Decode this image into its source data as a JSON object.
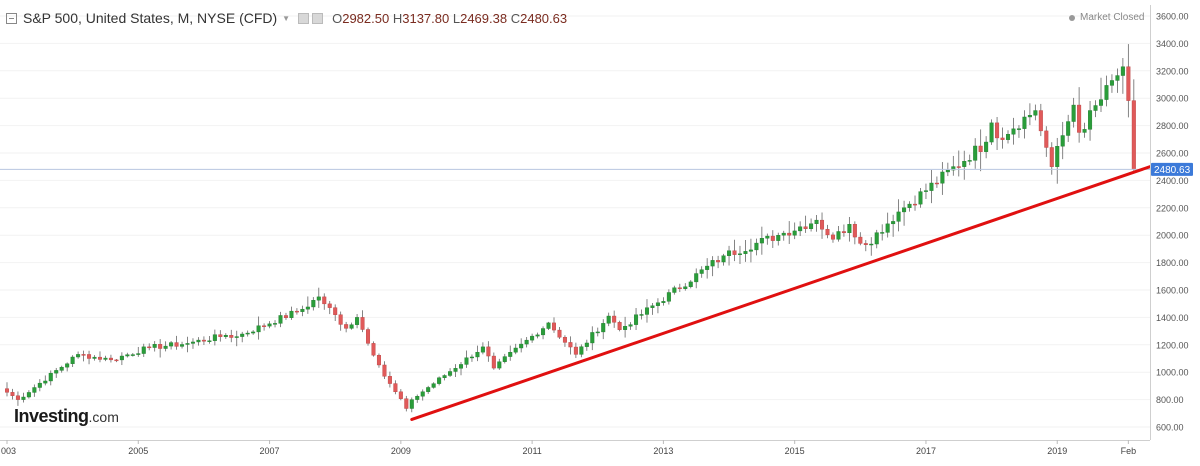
{
  "header": {
    "symbol": "S&P 500, United States, M, NYSE (CFD)",
    "open_label": "O",
    "open": "2982.50",
    "high_label": "H",
    "high": "3137.80",
    "low_label": "L",
    "low": "2469.38",
    "close_label": "C",
    "close": "2480.63"
  },
  "status": "Market Closed",
  "logo": {
    "brand": "Investing",
    "suffix": ".com"
  },
  "chart_data": {
    "type": "candlestick",
    "x_tick_labels": [
      "003",
      "2005",
      "2007",
      "2009",
      "2011",
      "2013",
      "2015",
      "2017",
      "2019",
      "Feb"
    ],
    "y_tick_labels": [
      "600.00",
      "800.00",
      "1000.00",
      "1200.00",
      "1400.00",
      "1600.00",
      "1800.00",
      "2000.00",
      "2200.00",
      "2400.00",
      "2600.00",
      "2800.00",
      "3000.00",
      "3200.00",
      "3400.00",
      "3600.00"
    ],
    "ylim": [
      540,
      3650
    ],
    "last_price": 2480.63,
    "last_price_label": "2480.63",
    "colors": {
      "up": "#2a9d3a",
      "down": "#e05a5a",
      "trendline": "#e01010",
      "price_tag": "#3c7ad9"
    },
    "waypoints": [
      [
        "2002-12",
        880
      ],
      [
        "2003-03",
        800
      ],
      [
        "2004-02",
        1130
      ],
      [
        "2004-08",
        1090
      ],
      [
        "2005-03",
        1180
      ],
      [
        "2005-10",
        1210
      ],
      [
        "2006-05",
        1270
      ],
      [
        "2006-07",
        1260
      ],
      [
        "2007-07",
        1460
      ],
      [
        "2007-10",
        1550
      ],
      [
        "2008-03",
        1320
      ],
      [
        "2008-05",
        1400
      ],
      [
        "2008-10",
        970
      ],
      [
        "2009-02",
        735
      ],
      [
        "2009-03",
        800
      ],
      [
        "2010-04",
        1185
      ],
      [
        "2010-06",
        1030
      ],
      [
        "2011-04",
        1360
      ],
      [
        "2011-09",
        1130
      ],
      [
        "2012-03",
        1410
      ],
      [
        "2012-05",
        1310
      ],
      [
        "2013-12",
        1850
      ],
      [
        "2014-10",
        2000
      ],
      [
        "2015-05",
        2110
      ],
      [
        "2015-08",
        1970
      ],
      [
        "2015-11",
        2080
      ],
      [
        "2016-01",
        1940
      ],
      [
        "2016-02",
        1930
      ],
      [
        "2016-08",
        2170
      ],
      [
        "2017-12",
        2680
      ],
      [
        "2018-01",
        2820
      ],
      [
        "2018-02",
        2710
      ],
      [
        "2018-09",
        2910
      ],
      [
        "2018-12",
        2500
      ],
      [
        "2019-04",
        2950
      ],
      [
        "2019-05",
        2750
      ],
      [
        "2020-01",
        3230
      ],
      [
        "2020-02",
        2982.5
      ],
      [
        "2020-03",
        2480.63
      ]
    ],
    "trendline": {
      "start": [
        "2009-03",
        655
      ],
      "end": [
        "2020-07",
        2500
      ]
    }
  }
}
